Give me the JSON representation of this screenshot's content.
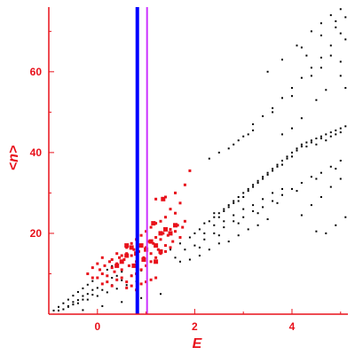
{
  "chart_data": {
    "type": "scatter",
    "xlabel": "E",
    "ylabel": "<n>",
    "xlim": [
      -1.0,
      5.15
    ],
    "ylim": [
      0.0,
      76.0
    ],
    "x_ticks": [
      0,
      2,
      4
    ],
    "y_ticks": [
      20,
      40,
      60
    ],
    "x_tick_labels": [
      "0",
      "2",
      "4"
    ],
    "y_tick_labels": [
      "20",
      "40",
      "60"
    ],
    "grid": false,
    "colors": {
      "axis": "#e8101a",
      "black_points": "#000000",
      "red_points": "#e8101a",
      "vline_blue": "#0000ff",
      "vline_magenta": "#cc33ff"
    },
    "vertical_lines": [
      {
        "x": 0.82,
        "color": "#0000ff"
      },
      {
        "x": 1.02,
        "color": "#cc33ff"
      }
    ],
    "series": [
      {
        "color": "#000000",
        "marker": "dot",
        "points": [
          [
            -0.9,
            0.9
          ],
          [
            -0.8,
            1.8
          ],
          [
            -0.7,
            2.7
          ],
          [
            -0.6,
            3.6
          ],
          [
            -0.5,
            4.6
          ],
          [
            -0.4,
            5.5
          ],
          [
            -0.3,
            6.4
          ],
          [
            -0.2,
            7.3
          ],
          [
            -0.1,
            8.2
          ],
          [
            0.0,
            9.1
          ],
          [
            0.1,
            10.1
          ],
          [
            0.2,
            11.0
          ],
          [
            0.3,
            11.9
          ],
          [
            -0.8,
            0.9
          ],
          [
            -0.6,
            1.8
          ],
          [
            -0.4,
            2.7
          ],
          [
            -0.2,
            3.6
          ],
          [
            0.0,
            4.5
          ],
          [
            0.2,
            5.4
          ],
          [
            0.4,
            6.3
          ],
          [
            0.6,
            7.2
          ],
          [
            0.8,
            8.1
          ],
          [
            -0.7,
            1.2
          ],
          [
            -0.5,
            2.4
          ],
          [
            -0.3,
            3.6
          ],
          [
            -0.1,
            4.8
          ],
          [
            0.1,
            6.0
          ],
          [
            0.3,
            7.2
          ],
          [
            0.5,
            8.4
          ],
          [
            0.7,
            9.6
          ],
          [
            0.9,
            10.8
          ],
          [
            -0.6,
            2.0
          ],
          [
            -0.4,
            3.5
          ],
          [
            -0.2,
            5.0
          ],
          [
            0.0,
            6.5
          ],
          [
            0.2,
            8.0
          ],
          [
            0.4,
            9.5
          ],
          [
            -0.3,
            1.0
          ],
          [
            0.1,
            2.0
          ],
          [
            0.5,
            3.0
          ],
          [
            0.9,
            4.0
          ],
          [
            1.3,
            5.0
          ],
          [
            -0.5,
            3.0
          ],
          [
            -0.3,
            4.5
          ],
          [
            -0.1,
            6.0
          ],
          [
            0.1,
            7.5
          ],
          [
            0.3,
            9.0
          ],
          [
            0.5,
            10.5
          ],
          [
            1.3,
            15.0
          ],
          [
            1.5,
            16.0
          ],
          [
            1.7,
            17.5
          ],
          [
            1.9,
            19.0
          ],
          [
            2.0,
            20.0
          ],
          [
            2.1,
            21.0
          ],
          [
            2.2,
            22.5
          ],
          [
            2.3,
            23.0
          ],
          [
            2.4,
            24.0
          ],
          [
            2.5,
            25.0
          ],
          [
            2.6,
            26.0
          ],
          [
            2.7,
            27.0
          ],
          [
            2.8,
            28.0
          ],
          [
            2.9,
            29.0
          ],
          [
            3.0,
            30.0
          ],
          [
            3.1,
            31.0
          ],
          [
            3.2,
            32.0
          ],
          [
            3.3,
            33.0
          ],
          [
            3.4,
            34.0
          ],
          [
            3.5,
            35.0
          ],
          [
            3.6,
            36.0
          ],
          [
            3.7,
            37.0
          ],
          [
            3.8,
            38.0
          ],
          [
            3.9,
            39.0
          ],
          [
            4.0,
            40.0
          ],
          [
            4.1,
            41.0
          ],
          [
            4.2,
            42.0
          ],
          [
            4.3,
            42.5
          ],
          [
            4.4,
            43.0
          ],
          [
            4.5,
            43.5
          ],
          [
            4.6,
            44.0
          ],
          [
            4.7,
            44.5
          ],
          [
            4.8,
            45.0
          ],
          [
            4.9,
            45.5
          ],
          [
            5.0,
            46.0
          ],
          [
            5.1,
            46.5
          ],
          [
            2.4,
            25.0
          ],
          [
            2.6,
            25.5
          ],
          [
            2.8,
            27.5
          ],
          [
            3.0,
            29.0
          ],
          [
            3.2,
            31.5
          ],
          [
            3.4,
            33.5
          ],
          [
            3.6,
            35.5
          ],
          [
            3.8,
            37.0
          ],
          [
            4.0,
            39.0
          ],
          [
            4.2,
            41.5
          ],
          [
            4.4,
            42.5
          ],
          [
            4.6,
            43.5
          ],
          [
            4.8,
            44.0
          ],
          [
            5.0,
            45.0
          ],
          [
            2.5,
            24.0
          ],
          [
            2.7,
            26.5
          ],
          [
            2.9,
            28.0
          ],
          [
            3.1,
            30.5
          ],
          [
            3.3,
            32.5
          ],
          [
            3.5,
            34.5
          ],
          [
            3.7,
            36.5
          ],
          [
            3.9,
            38.5
          ],
          [
            4.1,
            40.5
          ],
          [
            4.3,
            41.5
          ],
          [
            4.5,
            42.0
          ],
          [
            4.7,
            43.0
          ],
          [
            4.9,
            44.5
          ],
          [
            1.6,
            14.0
          ],
          [
            1.8,
            16.0
          ],
          [
            2.0,
            17.0
          ],
          [
            2.2,
            18.5
          ],
          [
            2.4,
            20.0
          ],
          [
            2.6,
            21.5
          ],
          [
            2.8,
            23.0
          ],
          [
            3.0,
            24.0
          ],
          [
            3.2,
            25.5
          ],
          [
            3.4,
            26.5
          ],
          [
            3.6,
            28.0
          ],
          [
            3.8,
            29.5
          ],
          [
            4.0,
            31.0
          ],
          [
            4.2,
            32.5
          ],
          [
            4.4,
            34.0
          ],
          [
            4.6,
            35.0
          ],
          [
            4.8,
            36.5
          ],
          [
            5.0,
            38.0
          ],
          [
            1.7,
            13.0
          ],
          [
            2.1,
            16.5
          ],
          [
            2.5,
            19.5
          ],
          [
            2.9,
            22.5
          ],
          [
            3.3,
            25.0
          ],
          [
            3.7,
            27.5
          ],
          [
            4.1,
            30.5
          ],
          [
            4.5,
            33.5
          ],
          [
            4.9,
            36.0
          ],
          [
            2.2,
            20.0
          ],
          [
            2.4,
            22.0
          ],
          [
            2.6,
            23.0
          ],
          [
            2.8,
            24.5
          ],
          [
            3.0,
            26.0
          ],
          [
            3.2,
            27.0
          ],
          [
            3.4,
            28.5
          ],
          [
            3.6,
            30.0
          ],
          [
            3.8,
            31.0
          ],
          [
            1.9,
            13.5
          ],
          [
            2.1,
            14.5
          ],
          [
            2.3,
            16.0
          ],
          [
            2.5,
            17.5
          ],
          [
            2.7,
            18.0
          ],
          [
            2.9,
            19.5
          ],
          [
            3.1,
            21.0
          ],
          [
            3.3,
            22.0
          ],
          [
            3.5,
            23.5
          ],
          [
            2.8,
            42.0
          ],
          [
            3.0,
            44.0
          ],
          [
            3.2,
            47.0
          ],
          [
            3.4,
            49.0
          ],
          [
            3.6,
            51.0
          ],
          [
            3.8,
            53.5
          ],
          [
            4.0,
            56.0
          ],
          [
            4.2,
            58.5
          ],
          [
            4.4,
            61.0
          ],
          [
            4.6,
            63.5
          ],
          [
            4.8,
            66.5
          ],
          [
            5.0,
            69.5
          ],
          [
            3.2,
            45.5
          ],
          [
            3.6,
            50.0
          ],
          [
            4.0,
            54.0
          ],
          [
            4.4,
            59.0
          ],
          [
            4.8,
            64.0
          ],
          [
            5.1,
            68.0
          ],
          [
            4.2,
            66.0
          ],
          [
            4.4,
            70.0
          ],
          [
            4.6,
            72.0
          ],
          [
            4.8,
            74.0
          ],
          [
            5.0,
            75.5
          ],
          [
            4.9,
            72.5
          ],
          [
            5.1,
            73.5
          ],
          [
            3.5,
            60.0
          ],
          [
            3.8,
            63.0
          ],
          [
            4.1,
            66.5
          ],
          [
            4.3,
            64.0
          ],
          [
            4.6,
            69.0
          ],
          [
            4.9,
            71.0
          ],
          [
            2.3,
            38.5
          ],
          [
            2.5,
            40.0
          ],
          [
            2.7,
            41.0
          ],
          [
            2.9,
            43.0
          ],
          [
            3.1,
            44.5
          ],
          [
            4.2,
            24.5
          ],
          [
            4.4,
            27.0
          ],
          [
            4.6,
            29.0
          ],
          [
            4.8,
            31.5
          ],
          [
            5.0,
            33.5
          ],
          [
            4.9,
            22.0
          ],
          [
            5.1,
            24.0
          ],
          [
            4.5,
            20.5
          ],
          [
            4.7,
            20.0
          ],
          [
            3.8,
            44.5
          ],
          [
            4.0,
            46.0
          ],
          [
            4.2,
            48.5
          ],
          [
            4.5,
            53.0
          ],
          [
            4.7,
            55.5
          ],
          [
            5.0,
            59.0
          ],
          [
            4.6,
            61.0
          ],
          [
            5.0,
            62.5
          ],
          [
            5.1,
            56.0
          ]
        ]
      },
      {
        "color": "#e8101a",
        "marker": "square-small",
        "points": [
          [
            0.0,
            9.0
          ],
          [
            0.05,
            11.0
          ],
          [
            0.1,
            10.0
          ],
          [
            0.15,
            12.0
          ],
          [
            0.2,
            9.5
          ],
          [
            0.25,
            13.0
          ],
          [
            0.3,
            11.5
          ],
          [
            0.35,
            10.5
          ],
          [
            0.4,
            12.5
          ],
          [
            0.45,
            14.0
          ],
          [
            0.5,
            11.0
          ],
          [
            0.55,
            13.5
          ],
          [
            0.6,
            15.0
          ],
          [
            0.65,
            12.0
          ],
          [
            0.7,
            14.5
          ],
          [
            0.75,
            16.0
          ],
          [
            0.8,
            13.0
          ],
          [
            0.85,
            15.5
          ],
          [
            0.9,
            17.0
          ],
          [
            0.95,
            14.0
          ],
          [
            1.0,
            16.5
          ],
          [
            1.05,
            18.0
          ],
          [
            1.1,
            15.0
          ],
          [
            1.15,
            17.5
          ],
          [
            1.2,
            19.0
          ],
          [
            1.25,
            16.0
          ],
          [
            1.3,
            18.5
          ],
          [
            1.35,
            20.0
          ],
          [
            1.4,
            17.0
          ],
          [
            1.45,
            19.5
          ],
          [
            1.5,
            21.0
          ],
          [
            1.55,
            18.0
          ],
          [
            1.6,
            20.5
          ],
          [
            1.65,
            22.0
          ],
          [
            1.7,
            19.0
          ],
          [
            1.75,
            21.5
          ],
          [
            1.8,
            23.0
          ],
          [
            0.1,
            7.5
          ],
          [
            0.2,
            8.0
          ],
          [
            0.3,
            7.0
          ],
          [
            0.4,
            8.5
          ],
          [
            0.5,
            9.0
          ],
          [
            0.6,
            8.0
          ],
          [
            0.7,
            9.5
          ],
          [
            0.8,
            10.0
          ],
          [
            0.9,
            11.0
          ],
          [
            1.0,
            12.0
          ],
          [
            1.1,
            13.0
          ],
          [
            1.2,
            14.0
          ],
          [
            1.3,
            15.0
          ],
          [
            1.4,
            15.5
          ],
          [
            1.5,
            16.5
          ],
          [
            0.3,
            13.5
          ],
          [
            0.4,
            15.0
          ],
          [
            0.5,
            14.5
          ],
          [
            0.6,
            16.5
          ],
          [
            0.7,
            17.5
          ],
          [
            0.8,
            18.5
          ],
          [
            0.9,
            19.5
          ],
          [
            1.0,
            20.5
          ],
          [
            1.1,
            21.5
          ],
          [
            1.2,
            22.5
          ],
          [
            1.3,
            23.0
          ],
          [
            1.4,
            24.0
          ],
          [
            1.5,
            26.0
          ],
          [
            1.6,
            25.0
          ],
          [
            1.7,
            27.5
          ],
          [
            1.8,
            32.0
          ],
          [
            1.9,
            35.5
          ],
          [
            1.6,
            30.0
          ],
          [
            1.4,
            29.0
          ],
          [
            1.2,
            28.5
          ],
          [
            -0.2,
            10.0
          ],
          [
            -0.1,
            11.5
          ],
          [
            0.0,
            12.5
          ],
          [
            0.1,
            14.0
          ],
          [
            -0.1,
            9.0
          ],
          [
            0.6,
            6.5
          ],
          [
            0.7,
            7.0
          ],
          [
            0.8,
            6.0
          ],
          [
            0.9,
            7.5
          ],
          [
            1.0,
            8.0
          ],
          [
            1.1,
            8.5
          ],
          [
            1.2,
            9.0
          ]
        ]
      },
      {
        "color": "#e8101a",
        "marker": "square-large",
        "points": [
          [
            0.5,
            13.0
          ],
          [
            0.6,
            14.5
          ],
          [
            0.7,
            16.5
          ],
          [
            0.75,
            12.0
          ],
          [
            0.8,
            15.0
          ],
          [
            0.9,
            17.0
          ],
          [
            0.95,
            13.5
          ],
          [
            1.0,
            16.0
          ],
          [
            1.1,
            18.0
          ],
          [
            1.2,
            17.0
          ],
          [
            1.3,
            20.0
          ],
          [
            1.4,
            21.0
          ],
          [
            1.5,
            20.0
          ],
          [
            1.6,
            22.0
          ],
          [
            1.2,
            13.0
          ],
          [
            1.3,
            15.5
          ],
          [
            0.6,
            17.0
          ],
          [
            0.4,
            12.0
          ],
          [
            1.15,
            22.5
          ],
          [
            1.35,
            28.5
          ]
        ]
      }
    ]
  }
}
